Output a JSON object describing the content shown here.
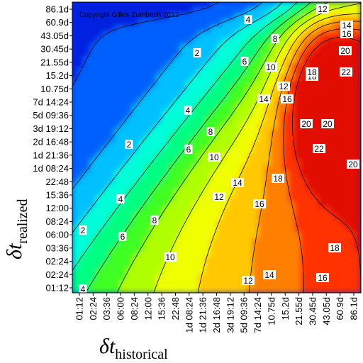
{
  "chart_data": {
    "type": "heatmap",
    "copyright": "Copyright Gilles Zumbach 2012",
    "xlabel": {
      "symbol": "δt",
      "subscript": "historical"
    },
    "ylabel": {
      "symbol": "δt",
      "subscript": "realized"
    },
    "x_ticks": [
      "01:12",
      "02:24",
      "03:36",
      "06:00",
      "08:24",
      "12:00",
      "15:36",
      "22:48",
      "1d 08:24",
      "1d 21:36",
      "2d 16:48",
      "3d 19:12",
      "5d 09:36",
      "7d 14:24",
      "10.75d",
      "15.2d",
      "21.55d",
      "30.45d",
      "43.05d",
      "60.9d",
      "86.1d"
    ],
    "y_ticks": [
      "86.1d",
      "60.9d",
      "43.05d",
      "30.45d",
      "21.55d",
      "15.2d",
      "10.75d",
      "7d 14:24",
      "5d 09:36",
      "3d 19:12",
      "2d 16:48",
      "1d 21:36",
      "1d 08:24",
      "22:48",
      "15:36",
      "12:00",
      "08:24",
      "06:00",
      "03:36",
      "02:24",
      "02:24",
      "01:12"
    ],
    "contour_levels": [
      2,
      4,
      6,
      8,
      10,
      12,
      14,
      16,
      18,
      20,
      22
    ],
    "contour_labels": [
      "12",
      "14",
      "16",
      "18",
      "20",
      "22",
      "2",
      "4",
      "6",
      "8",
      "10",
      "12",
      "14",
      "16",
      "18",
      "20",
      "22",
      "20",
      "18",
      "16",
      "14",
      "12",
      "10",
      "8",
      "6",
      "4",
      "2",
      "2",
      "4",
      "6",
      "8",
      "10",
      "12",
      "14",
      "16",
      "18",
      "20",
      "4",
      "2"
    ],
    "colors": [
      "#0020e0",
      "#0060ff",
      "#00c0ff",
      "#00ffd8",
      "#00ff80",
      "#40ff20",
      "#b0ff00",
      "#f0ff00",
      "#ffc800",
      "#ff8000",
      "#ff3000",
      "#e01000"
    ],
    "value_range": [
      0,
      24
    ]
  }
}
